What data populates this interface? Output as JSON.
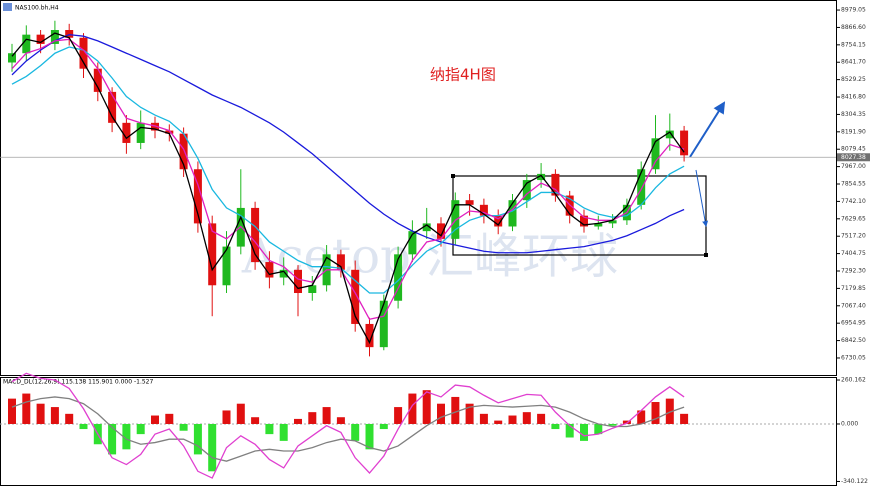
{
  "chart_data": [
    {
      "type": "candlestick",
      "title": "纳指4H图",
      "symbol": "NAS100.bh,H4",
      "watermark": "Acetop 汇峰环球",
      "up_color": "#1fb81f",
      "down_color": "#e01010",
      "open": [
        8640,
        8700,
        8820,
        8760,
        8850,
        8800,
        8600,
        8450,
        8250,
        8120,
        8250,
        8200,
        8180,
        7950,
        7600,
        7200,
        7450,
        7700,
        7350,
        7250,
        7300,
        7150,
        7200,
        7400,
        7300,
        6950,
        6800,
        7100,
        7400,
        7550,
        7600,
        7500,
        7750,
        7720,
        7650,
        7580,
        7750,
        7880,
        7920,
        7780,
        7650,
        7580,
        7600,
        7620,
        7720,
        7950,
        8150,
        8200
      ],
      "high": [
        8760,
        8880,
        8850,
        8910,
        8890,
        8830,
        8640,
        8480,
        8300,
        8330,
        8290,
        8240,
        8220,
        8000,
        7650,
        7550,
        7950,
        7740,
        7420,
        7380,
        7330,
        7260,
        7460,
        7430,
        7360,
        6990,
        7140,
        7450,
        7620,
        7700,
        7640,
        7800,
        7790,
        7760,
        7690,
        7790,
        7920,
        7990,
        7950,
        7810,
        7690,
        7650,
        7660,
        7760,
        8000,
        8300,
        8310,
        8230
      ],
      "low": [
        8580,
        8650,
        8700,
        8720,
        8750,
        8540,
        8390,
        8190,
        8050,
        8080,
        8150,
        8130,
        7900,
        7540,
        7000,
        7150,
        7400,
        7300,
        7180,
        7200,
        7000,
        7100,
        7160,
        7250,
        6900,
        6740,
        6780,
        7050,
        7350,
        7500,
        7450,
        7460,
        7650,
        7600,
        7530,
        7550,
        7700,
        7830,
        7740,
        7600,
        7540,
        7560,
        7570,
        7590,
        7690,
        7920,
        8070,
        8000
      ],
      "close": [
        8700,
        8820,
        8760,
        8850,
        8800,
        8600,
        8450,
        8250,
        8120,
        8250,
        8200,
        8180,
        7950,
        7600,
        7200,
        7450,
        7700,
        7350,
        7250,
        7300,
        7150,
        7200,
        7400,
        7300,
        6950,
        6800,
        7100,
        7400,
        7550,
        7600,
        7500,
        7750,
        7720,
        7650,
        7580,
        7750,
        7880,
        7920,
        7780,
        7650,
        7580,
        7600,
        7620,
        7720,
        7950,
        8150,
        8200,
        8040
      ],
      "lines": [
        {
          "color": "#1a1adc",
          "values": [
            8560,
            8650,
            8720,
            8780,
            8820,
            8810,
            8780,
            8740,
            8700,
            8660,
            8620,
            8580,
            8530,
            8480,
            8430,
            8390,
            8350,
            8300,
            8250,
            8190,
            8120,
            8050,
            7970,
            7890,
            7810,
            7730,
            7660,
            7600,
            7550,
            7510,
            7480,
            7460,
            7440,
            7420,
            7410,
            7410,
            7410,
            7420,
            7430,
            7440,
            7450,
            7470,
            7490,
            7520,
            7560,
            7600,
            7650,
            7690
          ]
        },
        {
          "color": "#1ab8e0",
          "values": [
            8500,
            8550,
            8620,
            8700,
            8740,
            8720,
            8650,
            8540,
            8420,
            8350,
            8300,
            8260,
            8180,
            8020,
            7820,
            7700,
            7650,
            7580,
            7480,
            7420,
            7360,
            7320,
            7320,
            7310,
            7230,
            7150,
            7150,
            7230,
            7330,
            7420,
            7470,
            7560,
            7620,
            7650,
            7650,
            7680,
            7740,
            7800,
            7800,
            7760,
            7700,
            7660,
            7640,
            7650,
            7720,
            7830,
            7920,
            7970
          ]
        },
        {
          "color": "#e020c0",
          "values": [
            8600,
            8700,
            8730,
            8780,
            8790,
            8720,
            8600,
            8430,
            8280,
            8250,
            8230,
            8200,
            8080,
            7850,
            7550,
            7500,
            7580,
            7480,
            7360,
            7320,
            7240,
            7220,
            7300,
            7300,
            7150,
            6980,
            7000,
            7180,
            7360,
            7480,
            7500,
            7620,
            7680,
            7670,
            7630,
            7690,
            7790,
            7860,
            7820,
            7720,
            7640,
            7620,
            7620,
            7670,
            7820,
            8000,
            8110,
            8080
          ]
        },
        {
          "color": "#000000",
          "values": [
            8680,
            8790,
            8770,
            8830,
            8800,
            8640,
            8480,
            8290,
            8150,
            8220,
            8210,
            8180,
            7980,
            7660,
            7300,
            7430,
            7640,
            7400,
            7270,
            7290,
            7180,
            7200,
            7380,
            7320,
            7000,
            6830,
            7080,
            7370,
            7530,
            7590,
            7520,
            7720,
            7720,
            7660,
            7590,
            7730,
            7860,
            7910,
            7790,
            7660,
            7590,
            7600,
            7620,
            7710,
            7930,
            8130,
            8190,
            8060
          ]
        }
      ],
      "last_price": 8027.38,
      "ylim": [
        6620,
        9044
      ],
      "yticks": [
        8979.05,
        {
          "value": 8866.6,
          "label": "8866.60"
        },
        8754.15,
        {
          "value": 8641.7,
          "label": "8641.70"
        },
        8529.25,
        {
          "value": 8416.8,
          "label": "8416.80"
        },
        8304.35,
        {
          "value": 8191.9,
          "label": "8191.90"
        },
        8079.45,
        {
          "value": 7967,
          "label": "7967.00"
        },
        7854.55,
        {
          "value": 7742.1,
          "label": "7742.10"
        },
        7629.65,
        {
          "value": 7517.2,
          "label": "7517.20"
        },
        7404.75,
        {
          "value": 7292.3,
          "label": "7292.30"
        },
        7179.85,
        {
          "value": 7067.4,
          "label": "7067.40"
        },
        6954.95,
        {
          "value": 6842.5,
          "label": "6842.50"
        },
        6730.05
      ]
    },
    {
      "type": "macd",
      "title": "MACD_DL(12,26,9) 115.138 115.901 0.000 -1.527",
      "up_color": "#e01010",
      "down_color": "#30e030",
      "values": [
        150,
        180,
        120,
        100,
        60,
        -30,
        -120,
        -180,
        -150,
        -60,
        50,
        60,
        -40,
        -180,
        -280,
        80,
        120,
        40,
        -60,
        -100,
        30,
        70,
        100,
        40,
        -100,
        -150,
        -30,
        100,
        180,
        200,
        120,
        160,
        120,
        60,
        20,
        50,
        70,
        60,
        -30,
        -80,
        -100,
        -60,
        -10,
        20,
        80,
        130,
        150,
        60
      ],
      "lines": [
        {
          "color": "#808080",
          "values": [
            100,
            130,
            150,
            160,
            150,
            120,
            60,
            -20,
            -90,
            -120,
            -110,
            -90,
            -90,
            -130,
            -200,
            -220,
            -190,
            -160,
            -150,
            -160,
            -160,
            -140,
            -110,
            -90,
            -100,
            -140,
            -160,
            -130,
            -70,
            -10,
            40,
            70,
            100,
            110,
            105,
            100,
            105,
            110,
            100,
            70,
            30,
            0,
            -15,
            -15,
            0,
            30,
            70,
            100
          ]
        },
        {
          "color": "#e040d0",
          "values": [
            250,
            300,
            270,
            260,
            210,
            90,
            -60,
            -200,
            -240,
            -180,
            -60,
            -30,
            -130,
            -280,
            -320,
            -140,
            -70,
            -120,
            -210,
            -260,
            -130,
            -70,
            -10,
            -50,
            -200,
            -290,
            -190,
            -30,
            110,
            190,
            160,
            230,
            220,
            170,
            125,
            150,
            175,
            170,
            70,
            -10,
            -70,
            -60,
            -25,
            5,
            80,
            160,
            220,
            160
          ]
        }
      ],
      "ylim": [
        -367,
        278
      ],
      "yticks": [
        260.162,
        {
          "value": 0,
          "label": "0.000"
        },
        -340.122
      ]
    }
  ]
}
